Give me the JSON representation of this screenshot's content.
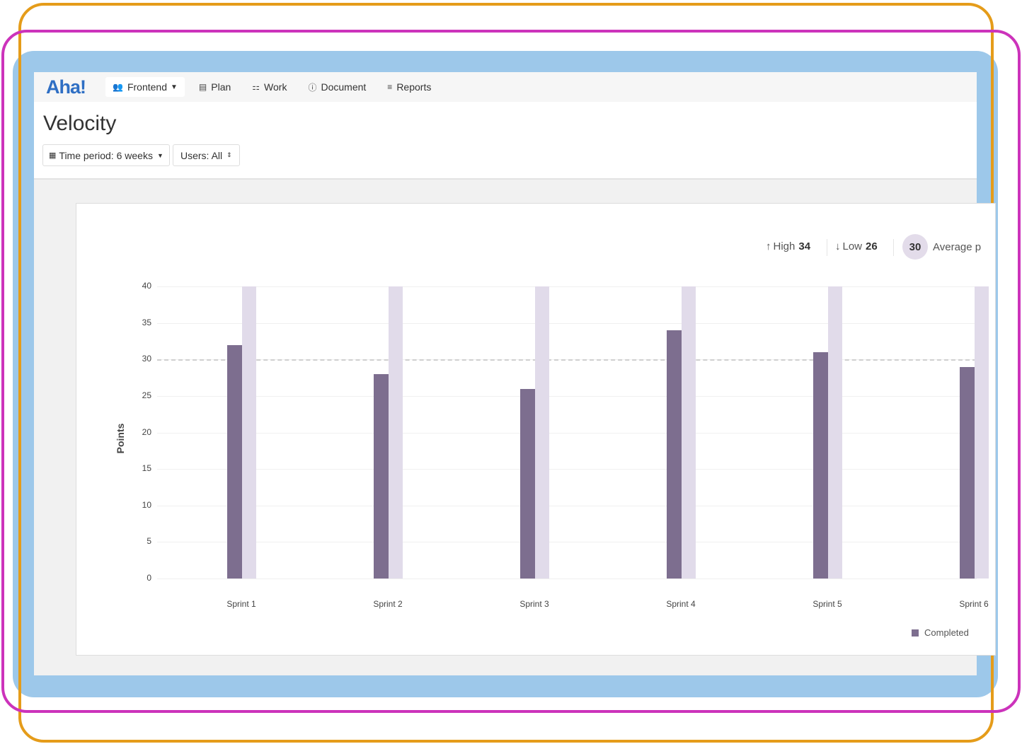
{
  "nav": {
    "logo": "Aha!",
    "items": [
      {
        "label": "Frontend",
        "icon": "users-icon"
      },
      {
        "label": "Plan",
        "icon": "calendar-icon"
      },
      {
        "label": "Work",
        "icon": "grid-icon"
      },
      {
        "label": "Document",
        "icon": "info-icon"
      },
      {
        "label": "Reports",
        "icon": "report-icon"
      }
    ]
  },
  "page": {
    "title": "Velocity",
    "filters": {
      "time_period": "Time period: 6 weeks",
      "users": "Users: All"
    }
  },
  "stats": {
    "high_label": "High",
    "high": "34",
    "low_label": "Low",
    "low": "26",
    "average": "30",
    "average_label": "Average p"
  },
  "colors": {
    "completed": "#7d6e8f",
    "background_bar": "#e1dbea",
    "accent": "#2f6fc4"
  },
  "chart_data": {
    "type": "bar",
    "ylabel": "Points",
    "ylim": [
      0,
      40
    ],
    "yticks": [
      0,
      5,
      10,
      15,
      20,
      25,
      30,
      35,
      40
    ],
    "categories": [
      "Sprint 1",
      "Sprint 2",
      "Sprint 3",
      "Sprint 4",
      "Sprint 5",
      "Sprint 6"
    ],
    "series": [
      {
        "name": "Completed",
        "values": [
          32,
          28,
          26,
          34,
          31,
          29
        ]
      }
    ],
    "background_bar_value": 40,
    "average_line": 30,
    "legend": "bottom-right",
    "grid": true
  }
}
